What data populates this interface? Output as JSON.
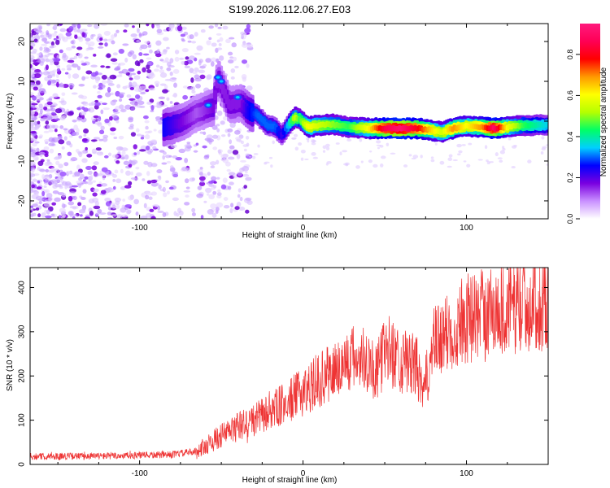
{
  "title": "S199.2026.112.06.27.E03",
  "chart_data": [
    {
      "type": "heatmap",
      "title": "S199.2026.112.06.27.E03",
      "xlabel": "Height of straight line (km)",
      "ylabel": "Frequency (Hz)",
      "xlim": [
        -167,
        150
      ],
      "ylim": [
        -24.5,
        24.5
      ],
      "x_ticks": [
        -100,
        0,
        100
      ],
      "x_tick_labels": [
        "-100",
        "0",
        "100"
      ],
      "y_ticks": [
        -20,
        -10,
        0,
        10,
        20
      ],
      "y_tick_labels": [
        "-20",
        "-10",
        "0",
        "10",
        "20"
      ],
      "colorbar": {
        "label": "Normalized spectral amplitude",
        "range": [
          0.0,
          0.95
        ],
        "ticks": [
          0.0,
          0.2,
          0.4,
          0.6,
          0.8
        ],
        "tick_labels": [
          "0.0",
          "0.2",
          "0.4",
          "0.6",
          "0.8"
        ],
        "colormap": [
          "#ffffff",
          "#c990ff",
          "#7a00e0",
          "#0000ff",
          "#00cfff",
          "#00ff66",
          "#b5ff00",
          "#ffff00",
          "#ff9900",
          "#ff0000",
          "#ff0055",
          "#ff1a7d"
        ]
      },
      "ridge": [
        {
          "x": -85,
          "y": -1.5,
          "v": 0.25
        },
        {
          "x": -75,
          "y": -0.5,
          "v": 0.18
        },
        {
          "x": -65,
          "y": 2,
          "v": 0.12
        },
        {
          "x": -55,
          "y": 3.5,
          "v": 0.17
        },
        {
          "x": -52,
          "y": 11,
          "v": 0.15
        },
        {
          "x": -45,
          "y": 4,
          "v": 0.16
        },
        {
          "x": -38,
          "y": 4.5,
          "v": 0.16
        },
        {
          "x": -33,
          "y": 2.5,
          "v": 0.25
        },
        {
          "x": -28,
          "y": 1.5,
          "v": 0.3
        },
        {
          "x": -22,
          "y": -1,
          "v": 0.3
        },
        {
          "x": -17,
          "y": -1.5,
          "v": 0.3
        },
        {
          "x": -13,
          "y": -3.5,
          "v": 0.22
        },
        {
          "x": -9,
          "y": -1,
          "v": 0.35
        },
        {
          "x": -5,
          "y": 1,
          "v": 0.55
        },
        {
          "x": -2,
          "y": 0.5,
          "v": 0.45
        },
        {
          "x": 3,
          "y": -1.5,
          "v": 0.6
        },
        {
          "x": 10,
          "y": -1,
          "v": 0.55
        },
        {
          "x": 18,
          "y": -0.8,
          "v": 0.5
        },
        {
          "x": 28,
          "y": -1.5,
          "v": 0.45
        },
        {
          "x": 40,
          "y": -1.8,
          "v": 0.6
        },
        {
          "x": 50,
          "y": -1.8,
          "v": 0.85
        },
        {
          "x": 60,
          "y": -1.8,
          "v": 0.92
        },
        {
          "x": 70,
          "y": -1.8,
          "v": 0.8
        },
        {
          "x": 78,
          "y": -2.2,
          "v": 0.65
        },
        {
          "x": 85,
          "y": -2.8,
          "v": 0.55
        },
        {
          "x": 92,
          "y": -1.8,
          "v": 0.7
        },
        {
          "x": 100,
          "y": -1.2,
          "v": 0.6
        },
        {
          "x": 110,
          "y": -1.5,
          "v": 0.7
        },
        {
          "x": 117,
          "y": -1.8,
          "v": 0.9
        },
        {
          "x": 125,
          "y": -1.5,
          "v": 0.6
        },
        {
          "x": 135,
          "y": -1,
          "v": 0.45
        },
        {
          "x": 143,
          "y": -1,
          "v": 0.4
        },
        {
          "x": 150,
          "y": -1,
          "v": 0.35
        }
      ]
    },
    {
      "type": "line",
      "xlabel": "Height of straight line (km)",
      "ylabel": "SNR (10 * v/v)",
      "xlim": [
        -167,
        150
      ],
      "ylim": [
        0,
        445
      ],
      "x_ticks": [
        -100,
        0,
        100
      ],
      "x_tick_labels": [
        "-100",
        "0",
        "100"
      ],
      "y_ticks": [
        0,
        100,
        200,
        300,
        400
      ],
      "y_tick_labels": [
        "0",
        "100",
        "200",
        "300",
        "400"
      ],
      "series": [
        {
          "name": "SNR",
          "color": "#ee3333",
          "trend": {
            "x": [
              -167,
              -120,
              -80,
              -65,
              -50,
              -40,
              -30,
              -20,
              -10,
              0,
              10,
              20,
              30,
              40,
              45,
              50,
              55,
              60,
              70,
              73,
              80,
              90,
              100,
              110,
              120,
              130,
              140,
              150
            ],
            "y": [
              18,
              19,
              22,
              30,
              65,
              85,
              100,
              120,
              140,
              165,
              190,
              215,
              240,
              240,
              200,
              265,
              250,
              235,
              220,
              150,
              270,
              300,
              330,
              340,
              350,
              360,
              365,
              370
            ]
          }
        }
      ]
    }
  ]
}
